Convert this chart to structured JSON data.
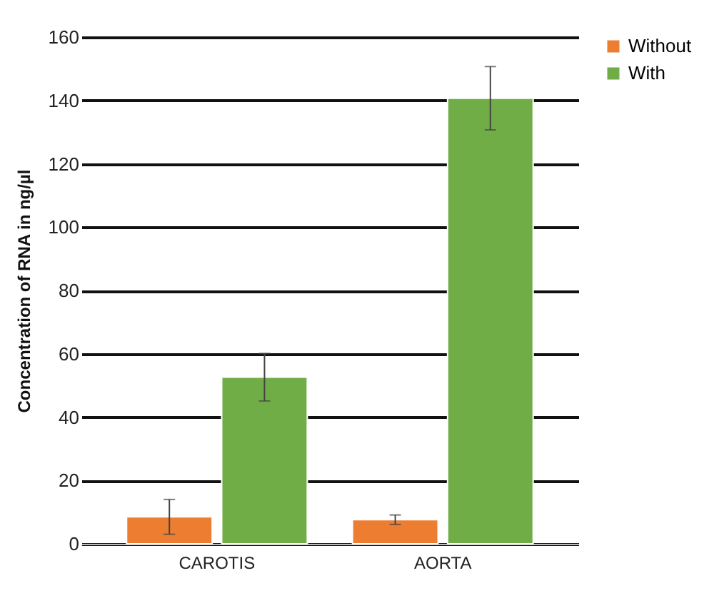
{
  "chart_data": {
    "type": "bar",
    "ylabel": "Concentration  of RNA in ng/µl",
    "categories": [
      "CAROTIS",
      "AORTA"
    ],
    "series": [
      {
        "name": "Without",
        "color": "#ed7d31",
        "values": [
          8.5,
          7.6
        ],
        "errors": [
          5.5,
          1.5
        ]
      },
      {
        "name": "With",
        "color": "#70ad47",
        "values": [
          52.6,
          140.7
        ],
        "errors": [
          7.5,
          10
        ]
      }
    ],
    "ylim": [
      0,
      160
    ],
    "yticks": [
      0,
      20,
      40,
      60,
      80,
      100,
      120,
      140,
      160
    ],
    "grid": "y",
    "legend": "right"
  }
}
